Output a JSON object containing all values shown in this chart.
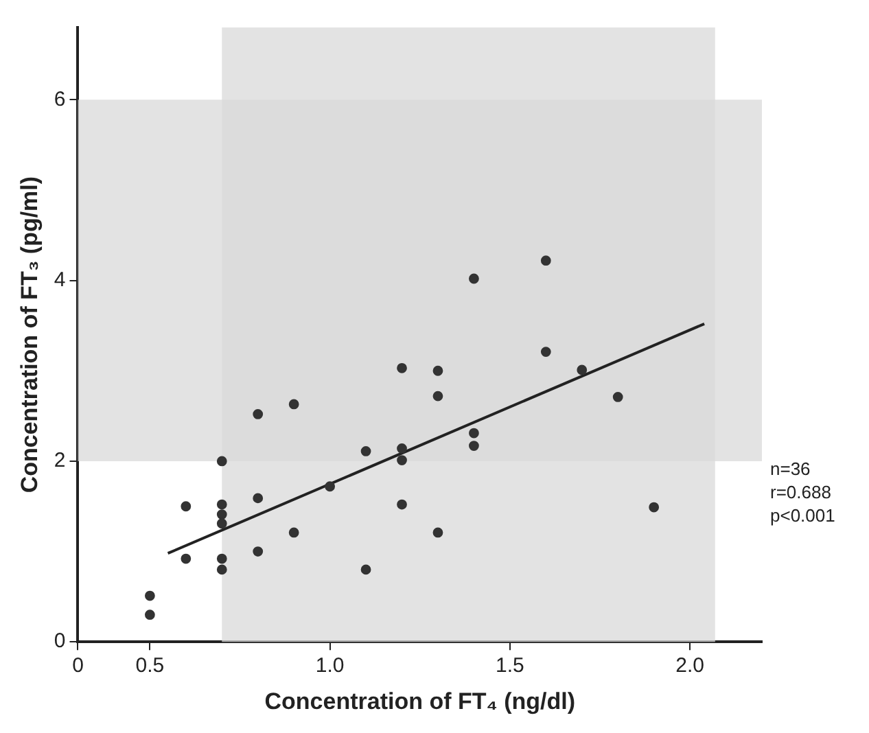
{
  "chart_data": {
    "type": "scatter",
    "xlabel": "Concentration of FT₄ (ng/dl)",
    "ylabel": "Concentration of FT₃ (pg/ml)",
    "xlim": [
      0.3,
      2.2
    ],
    "xticks": [
      {
        "value": 0.3,
        "label": "0"
      },
      0.5,
      {
        "value": 1.0,
        "label": "1.0"
      },
      1.5,
      {
        "value": 2.0,
        "label": "2.0"
      }
    ],
    "ylim": [
      0,
      6.8
    ],
    "yticks": [
      0,
      2,
      4,
      6
    ],
    "grid": false,
    "legend": false,
    "bands": [
      {
        "axis": "x",
        "from": 0.7,
        "to": 2.07,
        "color": "#d9d9d9"
      },
      {
        "axis": "y",
        "from": 2,
        "to": 6,
        "color": "#d9d9d9"
      }
    ],
    "series": [
      {
        "marker": "circle",
        "color": "#333333",
        "x": [
          0.7,
          1.1,
          0.6,
          0.7,
          0.7,
          0.7,
          0.8,
          1.0,
          0.9,
          0.8,
          0.6,
          0.7,
          0.7,
          1.1,
          0.5,
          0.5,
          1.6,
          1.4,
          1.6,
          1.2,
          1.3,
          1.3,
          1.7,
          1.8,
          1.4,
          1.4,
          1.2,
          1.2,
          1.2,
          1.3,
          1.9,
          0.8,
          0.9
        ],
        "values": [
          2.0,
          2.11,
          1.5,
          1.52,
          1.41,
          1.31,
          1.59,
          1.72,
          1.21,
          1.0,
          0.92,
          0.92,
          0.8,
          0.8,
          0.51,
          0.3,
          4.22,
          4.02,
          3.21,
          3.03,
          3.0,
          2.72,
          3.01,
          2.71,
          2.31,
          2.17,
          2.14,
          2.01,
          1.52,
          1.21,
          1.49,
          2.52,
          2.63
        ]
      },
      {
        "type": "line",
        "marker": "none",
        "color": "#222222",
        "line_style": "solid",
        "x": [
          0.55,
          2.04
        ],
        "values": [
          0.98,
          3.52
        ]
      }
    ],
    "annotations": [
      "n=36",
      "r=0.688",
      "p<0.001"
    ]
  }
}
